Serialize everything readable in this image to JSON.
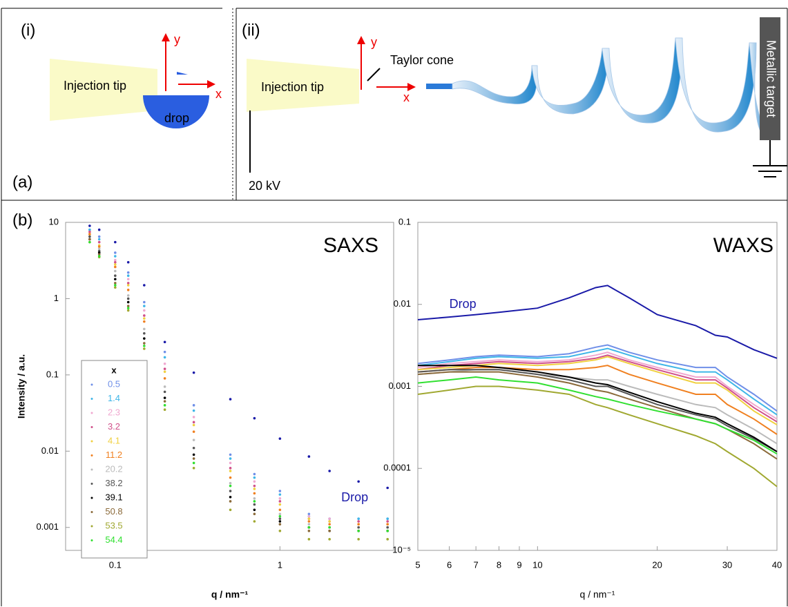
{
  "panel_a": {
    "label": "(a)",
    "i": {
      "label": "(i)",
      "tip": "Injection tip",
      "drop": "drop",
      "y": "y",
      "x": "x"
    },
    "ii": {
      "label": "(ii)",
      "tip": "Injection tip",
      "cone": "Taylor cone",
      "y": "y",
      "x": "x",
      "voltage": "20 kV",
      "target": "Metallic target"
    }
  },
  "panel_b_label": "(b)",
  "chart_data": [
    {
      "type": "scatter",
      "title": "SAXS",
      "xlabel": "q / nm⁻¹",
      "ylabel": "Intensity / a.u.",
      "log_x": true,
      "log_y": true,
      "legend": "lower left",
      "legend_title": "x",
      "xlim": [
        0.05,
        4.9
      ],
      "ylim": [
        0.0005,
        10
      ],
      "xticks": [
        0.1,
        1
      ],
      "yticks": [
        10,
        1,
        0.1,
        0.01,
        0.001
      ],
      "x": [
        0.07,
        0.08,
        0.1,
        0.12,
        0.15,
        0.2,
        0.3,
        0.5,
        0.7,
        1,
        1.5,
        2,
        3,
        4.5
      ],
      "series": [
        {
          "label": "Drop",
          "color": "#1a1aa8",
          "values": [
            9,
            8,
            5.5,
            3,
            1.5,
            0.27,
            0.107,
            0.048,
            0.027,
            0.0146,
            0.0085,
            0.0055,
            0.004,
            0.0033
          ]
        },
        {
          "name": "0.5",
          "color": "#6f8fe8",
          "values": [
            8,
            6.5,
            4,
            2.2,
            0.9,
            0.2,
            0.04,
            0.009,
            0.005,
            0.003,
            0.0015,
            0.0013,
            0.0013,
            0.0013
          ]
        },
        {
          "name": "1.4",
          "color": "#3fb6e8",
          "values": [
            8,
            6,
            3.6,
            2,
            0.8,
            0.17,
            0.034,
            0.008,
            0.0045,
            0.0027,
            0.0014,
            0.0013,
            0.0013,
            0.0013
          ]
        },
        {
          "name": "2.3",
          "color": "#f0a8d0",
          "values": [
            7.5,
            5.5,
            3.2,
            1.8,
            0.7,
            0.14,
            0.028,
            0.007,
            0.004,
            0.0024,
            0.0014,
            0.0013,
            0.0012,
            0.0012
          ]
        },
        {
          "name": "3.2",
          "color": "#d0508a",
          "values": [
            7.5,
            5.5,
            3,
            1.6,
            0.6,
            0.12,
            0.024,
            0.006,
            0.0035,
            0.0022,
            0.0013,
            0.0012,
            0.0012,
            0.0012
          ]
        },
        {
          "name": "4.1",
          "color": "#f0d040",
          "values": [
            7,
            5,
            2.8,
            1.5,
            0.55,
            0.11,
            0.022,
            0.0055,
            0.0032,
            0.002,
            0.0013,
            0.0012,
            0.0011,
            0.0011
          ]
        },
        {
          "name": "11.2",
          "color": "#f08020",
          "values": [
            7,
            4.8,
            2.6,
            1.3,
            0.5,
            0.09,
            0.018,
            0.0045,
            0.0028,
            0.0017,
            0.0012,
            0.0011,
            0.0011,
            0.0011
          ]
        },
        {
          "name": "20.2",
          "color": "#bbbbbb",
          "values": [
            6.5,
            4.5,
            2.3,
            1.1,
            0.4,
            0.07,
            0.014,
            0.0038,
            0.0024,
            0.0015,
            0.0011,
            0.001,
            0.001,
            0.001
          ]
        },
        {
          "name": "38.2",
          "color": "#555555",
          "values": [
            6.5,
            4.2,
            2,
            1,
            0.35,
            0.06,
            0.011,
            0.003,
            0.002,
            0.0013,
            0.001,
            0.001,
            0.001,
            0.001
          ]
        },
        {
          "name": "39.1",
          "color": "#000000",
          "values": [
            6,
            4,
            1.8,
            0.9,
            0.3,
            0.05,
            0.009,
            0.0025,
            0.0017,
            0.0012,
            0.001,
            0.0009,
            0.0009,
            0.0009
          ]
        },
        {
          "name": "50.8",
          "color": "#8b6a3a",
          "values": [
            6,
            3.8,
            1.6,
            0.8,
            0.26,
            0.045,
            0.008,
            0.0022,
            0.0015,
            0.0011,
            0.0009,
            0.0009,
            0.0009,
            0.0009
          ]
        },
        {
          "name": "53.5",
          "color": "#a0a830",
          "values": [
            5.5,
            3.5,
            1.4,
            0.7,
            0.22,
            0.035,
            0.006,
            0.0017,
            0.0012,
            0.0009,
            0.0007,
            0.0007,
            0.0007,
            0.0007
          ]
        },
        {
          "name": "54.4",
          "color": "#30e030",
          "values": [
            5.5,
            3.6,
            1.5,
            0.75,
            0.24,
            0.04,
            0.007,
            0.0035,
            0.0022,
            0.0014,
            0.001,
            0.001,
            0.0009,
            0.0009
          ]
        }
      ]
    },
    {
      "type": "line",
      "title": "WAXS",
      "xlabel": "q / nm⁻¹",
      "log_x": true,
      "log_y": true,
      "xlim": [
        5,
        40
      ],
      "ylim": [
        1e-05,
        0.1
      ],
      "xticks": [
        5,
        6,
        7,
        8,
        9,
        10,
        20,
        30,
        40
      ],
      "yticks": [
        0.1,
        0.01,
        0.001,
        0.0001,
        {
          "value": 1e-05,
          "label": "10⁻⁵"
        }
      ],
      "x": [
        5,
        6,
        7,
        8,
        10,
        12,
        14,
        15,
        17,
        20,
        25,
        28,
        30,
        35,
        40
      ],
      "series": [
        {
          "label": "Drop",
          "color": "#1a1aa8",
          "values": [
            0.0065,
            0.007,
            0.0075,
            0.008,
            0.009,
            0.012,
            0.016,
            0.017,
            0.012,
            0.0075,
            0.0055,
            0.0042,
            0.004,
            0.0028,
            0.0022
          ]
        },
        {
          "color": "#6f8fe8",
          "values": [
            0.0019,
            0.0021,
            0.0023,
            0.0024,
            0.0023,
            0.0025,
            0.003,
            0.0032,
            0.0026,
            0.0021,
            0.0017,
            0.0017,
            0.0013,
            0.0008,
            0.0005
          ]
        },
        {
          "color": "#3fb6e8",
          "values": [
            0.0018,
            0.002,
            0.0022,
            0.0023,
            0.0022,
            0.0023,
            0.0027,
            0.0029,
            0.0024,
            0.0019,
            0.0015,
            0.0015,
            0.0012,
            0.0007,
            0.00045
          ]
        },
        {
          "color": "#f0a8d0",
          "values": [
            0.0017,
            0.0019,
            0.002,
            0.0021,
            0.002,
            0.0021,
            0.0024,
            0.0026,
            0.0021,
            0.0017,
            0.0013,
            0.0013,
            0.001,
            0.0006,
            0.0004
          ]
        },
        {
          "color": "#d0508a",
          "values": [
            0.0016,
            0.0018,
            0.0019,
            0.002,
            0.0019,
            0.002,
            0.0022,
            0.0024,
            0.002,
            0.0016,
            0.0012,
            0.0012,
            0.00095,
            0.00055,
            0.00037
          ]
        },
        {
          "color": "#f0d040",
          "values": [
            0.0016,
            0.0017,
            0.0018,
            0.0019,
            0.0018,
            0.0019,
            0.0021,
            0.0023,
            0.0019,
            0.0015,
            0.0011,
            0.0011,
            0.0009,
            0.0005,
            0.00034
          ]
        },
        {
          "color": "#f08020",
          "values": [
            0.0015,
            0.0016,
            0.0017,
            0.0017,
            0.0016,
            0.0016,
            0.0017,
            0.0018,
            0.0014,
            0.0011,
            0.0008,
            0.0008,
            0.0006,
            0.0004,
            0.00026
          ]
        },
        {
          "color": "#bbbbbb",
          "values": [
            0.0014,
            0.0015,
            0.0016,
            0.0016,
            0.0014,
            0.0013,
            0.0012,
            0.0012,
            0.001,
            0.0008,
            0.0006,
            0.00055,
            0.00045,
            0.0003,
            0.0002
          ]
        },
        {
          "color": "#555555",
          "values": [
            0.0015,
            0.0016,
            0.0016,
            0.0016,
            0.0014,
            0.0012,
            0.001,
            0.001,
            0.0008,
            0.0006,
            0.00045,
            0.0004,
            0.00033,
            0.00023,
            0.00016
          ]
        },
        {
          "color": "#000000",
          "values": [
            0.0018,
            0.0018,
            0.0018,
            0.0017,
            0.0015,
            0.0013,
            0.0011,
            0.00105,
            0.00085,
            0.00065,
            0.00047,
            0.00042,
            0.00035,
            0.00024,
            0.00016
          ]
        },
        {
          "color": "#8b6a3a",
          "values": [
            0.0014,
            0.0015,
            0.0015,
            0.0015,
            0.0013,
            0.0011,
            0.0009,
            0.00085,
            0.0007,
            0.00055,
            0.0004,
            0.00035,
            0.0003,
            0.0002,
            0.00013
          ]
        },
        {
          "color": "#a0a830",
          "values": [
            0.0008,
            0.0009,
            0.001,
            0.001,
            0.0009,
            0.0008,
            0.0006,
            0.00055,
            0.00045,
            0.00035,
            0.00025,
            0.0002,
            0.00016,
            0.0001,
            6e-05
          ]
        },
        {
          "color": "#30e030",
          "values": [
            0.0011,
            0.0012,
            0.0013,
            0.0012,
            0.0011,
            0.0009,
            0.00075,
            0.0007,
            0.0006,
            0.0005,
            0.0004,
            0.00035,
            0.0003,
            0.00022,
            0.00015
          ]
        }
      ]
    }
  ]
}
